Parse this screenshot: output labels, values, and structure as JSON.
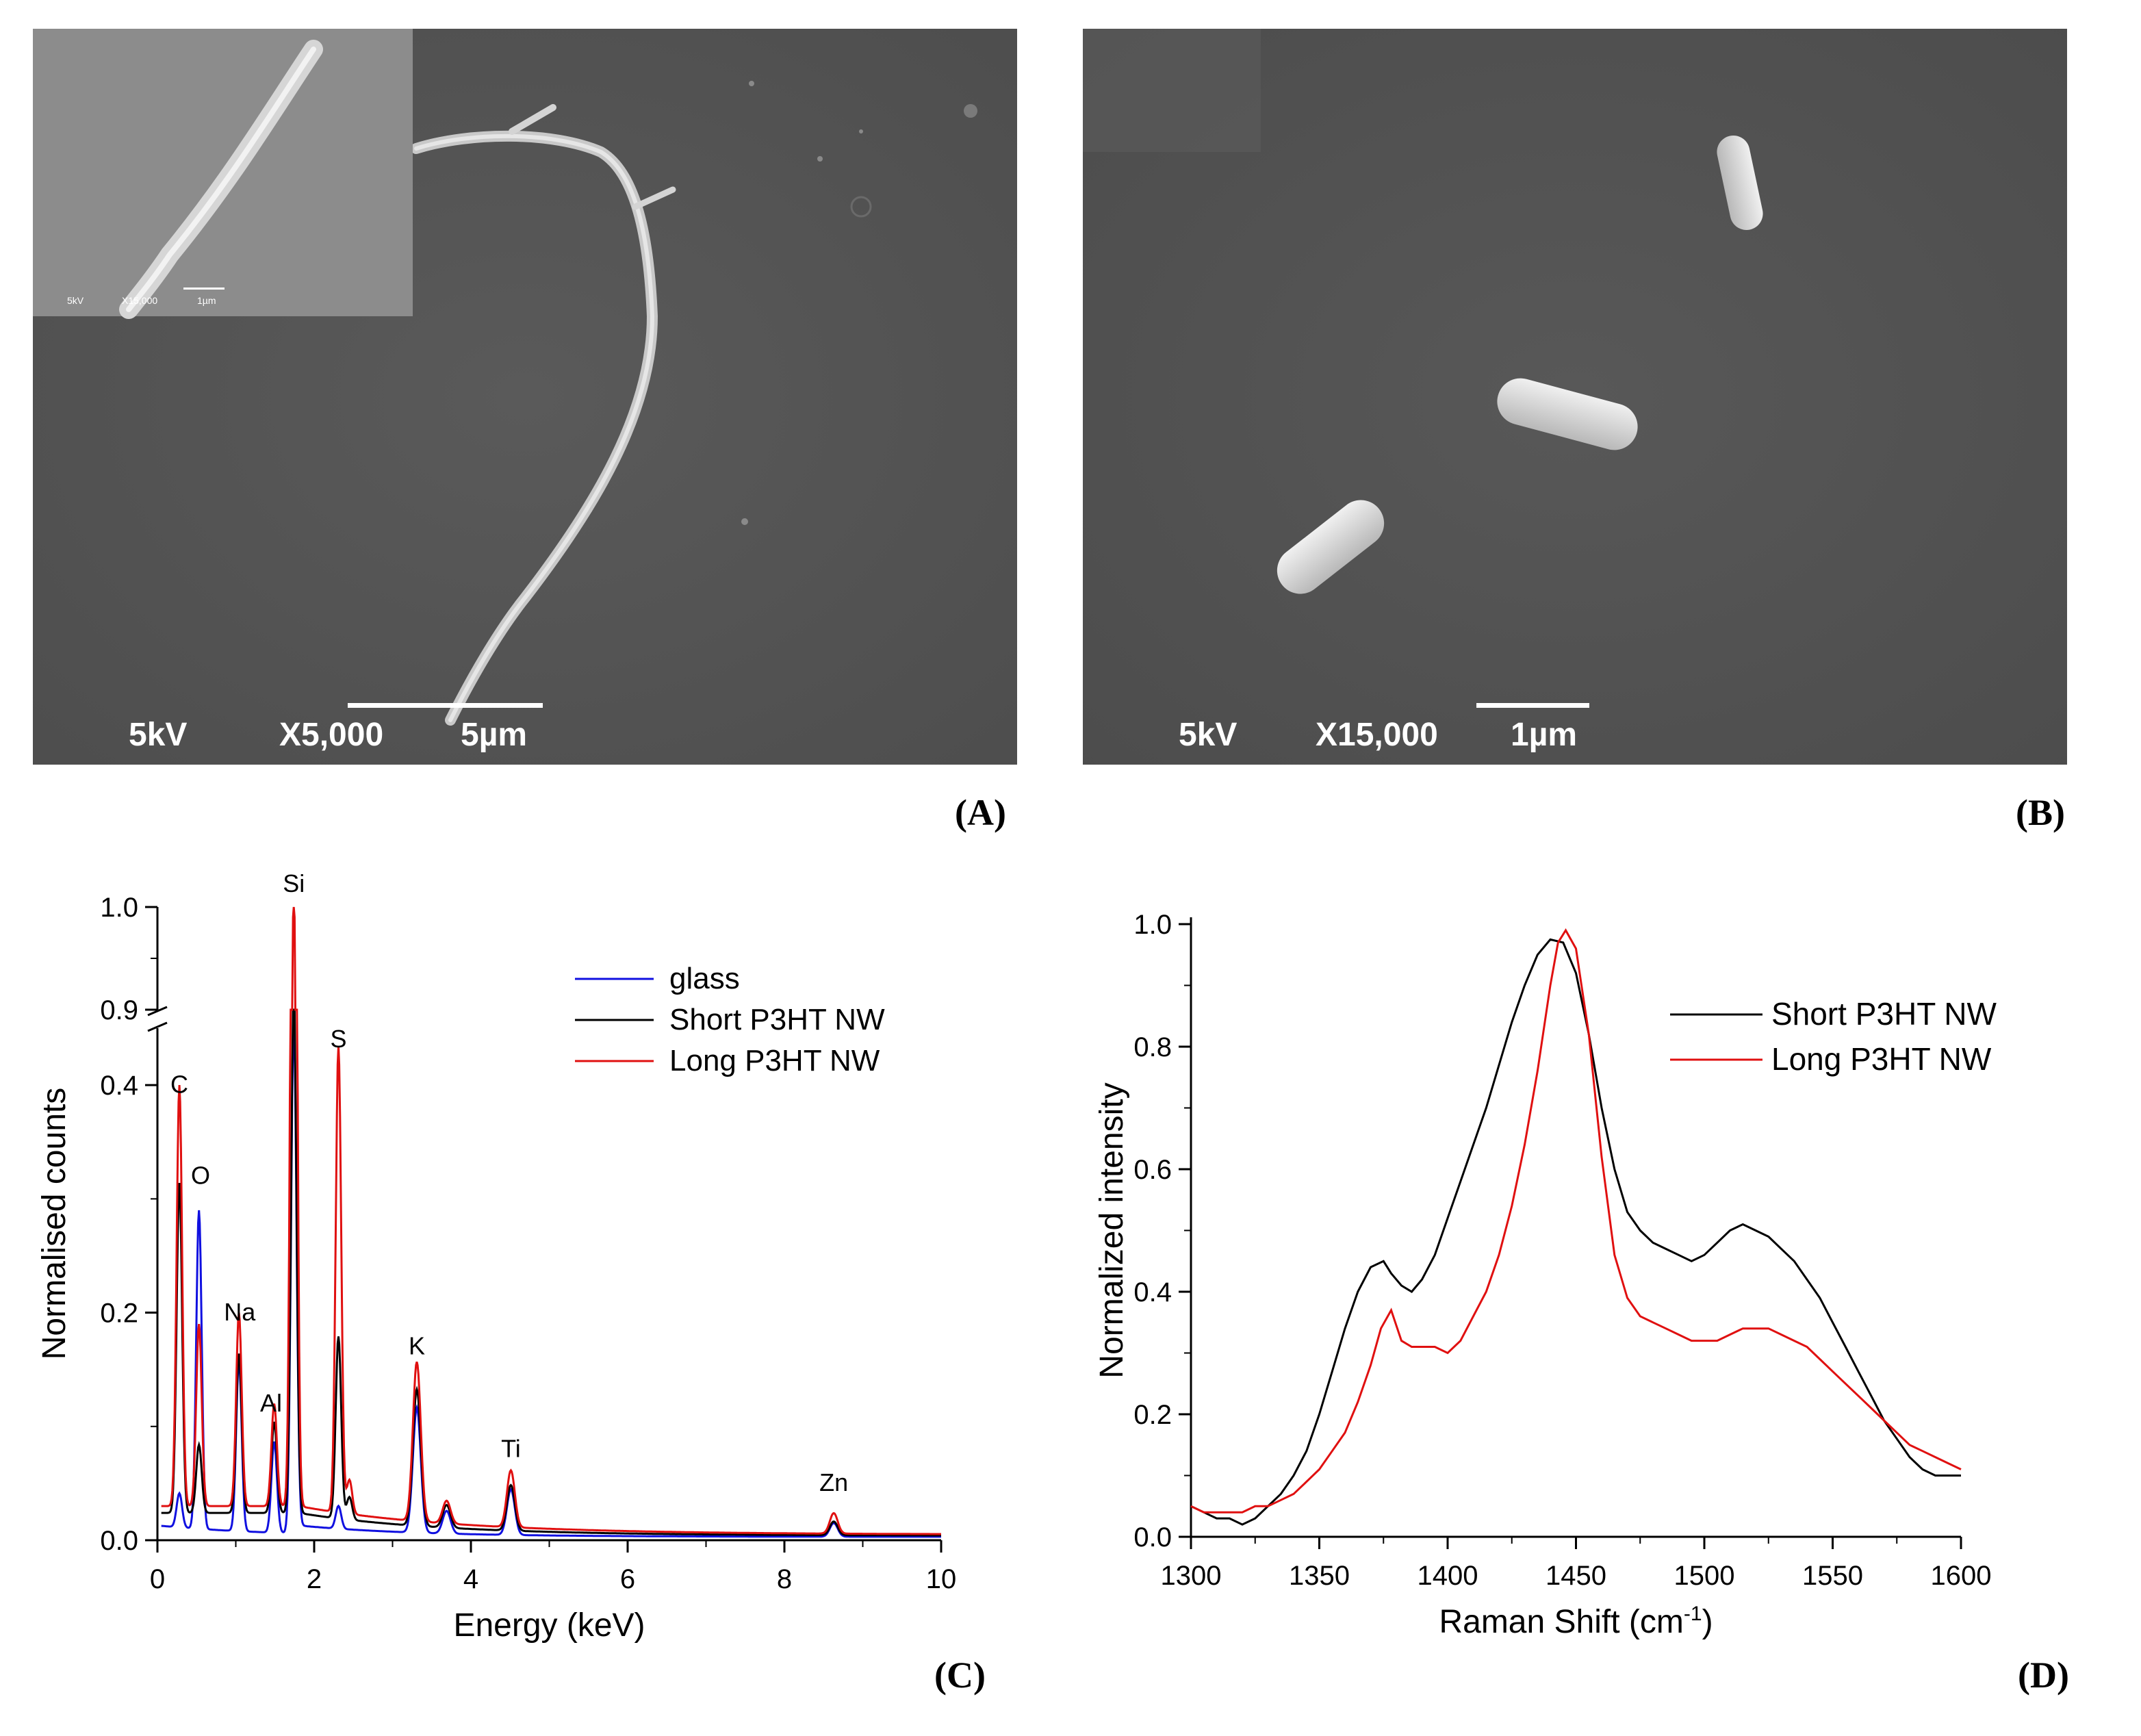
{
  "panels": {
    "A": {
      "letter": "(A)",
      "voltage": "5kV",
      "magnification": "X5,000",
      "scale": "5µm",
      "inset": {
        "voltage": "5kV",
        "magnification": "X15,000",
        "scale": "1µm"
      }
    },
    "B": {
      "letter": "(B)",
      "voltage": "5kV",
      "magnification": "X15,000",
      "scale": "1µm"
    },
    "C": {
      "letter": "(C)"
    },
    "D": {
      "letter": "(D)"
    }
  },
  "chart_data": [
    {
      "type": "line",
      "panel": "C",
      "xlabel": "Energy (keV)",
      "ylabel": "Normalised counts",
      "xlim": [
        0,
        10
      ],
      "ylim_lower": [
        0,
        0.45
      ],
      "ylim_upper": [
        0.9,
        1.0
      ],
      "axis_break": "between 0.45 and 0.9",
      "x_ticks": [
        "0",
        "2",
        "4",
        "6",
        "8",
        "10"
      ],
      "y_ticks": [
        "0.0",
        "0.2",
        "0.4",
        "0.9",
        "1.0"
      ],
      "legend_position": "top-right",
      "series": [
        {
          "name": "glass",
          "color": "#1010e0",
          "peaks": [
            [
              0.28,
              0.03
            ],
            [
              0.53,
              0.28
            ],
            [
              1.04,
              0.15
            ],
            [
              1.49,
              0.08
            ],
            [
              1.74,
              0.45
            ],
            [
              2.31,
              0.02
            ],
            [
              3.31,
              0.11
            ],
            [
              3.69,
              0.02
            ],
            [
              4.51,
              0.04
            ],
            [
              8.63,
              0.012
            ]
          ]
        },
        {
          "name": "Short P3HT NW",
          "color": "#000000",
          "peaks": [
            [
              0.28,
              0.29
            ],
            [
              0.53,
              0.06
            ],
            [
              1.04,
              0.14
            ],
            [
              1.49,
              0.08
            ],
            [
              1.74,
              0.45
            ],
            [
              2.31,
              0.16
            ],
            [
              2.45,
              0.02
            ],
            [
              3.31,
              0.12
            ],
            [
              3.69,
              0.02
            ],
            [
              4.51,
              0.04
            ],
            [
              8.63,
              0.012
            ]
          ]
        },
        {
          "name": "Long P3HT NW",
          "color": "#e01010",
          "peaks": [
            [
              0.28,
              0.37
            ],
            [
              0.53,
              0.16
            ],
            [
              1.04,
              0.17
            ],
            [
              1.49,
              0.09
            ],
            [
              1.74,
              1.0
            ],
            [
              2.31,
              0.41
            ],
            [
              2.45,
              0.03
            ],
            [
              3.31,
              0.14
            ],
            [
              3.69,
              0.02
            ],
            [
              4.51,
              0.05
            ],
            [
              8.63,
              0.018
            ]
          ]
        }
      ],
      "annotations": [
        {
          "text": "C",
          "x": 0.28,
          "y": 0.38
        },
        {
          "text": "O",
          "x": 0.55,
          "y": 0.3
        },
        {
          "text": "Na",
          "x": 1.05,
          "y": 0.18
        },
        {
          "text": "Al",
          "x": 1.45,
          "y": 0.1
        },
        {
          "text": "Si",
          "x": 1.74,
          "y": 1.0
        },
        {
          "text": "S",
          "x": 2.31,
          "y": 0.42
        },
        {
          "text": "K",
          "x": 3.31,
          "y": 0.15
        },
        {
          "text": "Ti",
          "x": 4.51,
          "y": 0.06
        },
        {
          "text": "Zn",
          "x": 8.63,
          "y": 0.03
        }
      ]
    },
    {
      "type": "line",
      "panel": "D",
      "xlabel": "Raman Shift (cm",
      "xlabel_sup": "-1",
      "xlabel_end": ")",
      "ylabel": "Normalized intensity",
      "xlim": [
        1300,
        1600
      ],
      "ylim": [
        0,
        1.0
      ],
      "x_ticks": [
        "1300",
        "1350",
        "1400",
        "1450",
        "1500",
        "1550",
        "1600"
      ],
      "y_ticks": [
        "0.0",
        "0.2",
        "0.4",
        "0.6",
        "0.8",
        "1.0"
      ],
      "legend_position": "top-right",
      "series": [
        {
          "name": "Short P3HT NW",
          "color": "#000000",
          "x": [
            1300,
            1305,
            1310,
            1315,
            1320,
            1325,
            1330,
            1335,
            1340,
            1345,
            1350,
            1355,
            1360,
            1365,
            1370,
            1375,
            1378,
            1382,
            1386,
            1390,
            1395,
            1400,
            1405,
            1410,
            1415,
            1420,
            1425,
            1430,
            1435,
            1440,
            1445,
            1450,
            1455,
            1460,
            1465,
            1470,
            1475,
            1480,
            1485,
            1490,
            1495,
            1500,
            1505,
            1510,
            1515,
            1520,
            1525,
            1530,
            1535,
            1540,
            1545,
            1550,
            1555,
            1560,
            1565,
            1570,
            1575,
            1580,
            1585,
            1590,
            1595,
            1600
          ],
          "y": [
            0.05,
            0.04,
            0.03,
            0.03,
            0.02,
            0.03,
            0.05,
            0.07,
            0.1,
            0.14,
            0.2,
            0.27,
            0.34,
            0.4,
            0.44,
            0.45,
            0.43,
            0.41,
            0.4,
            0.42,
            0.46,
            0.52,
            0.58,
            0.64,
            0.7,
            0.77,
            0.84,
            0.9,
            0.95,
            0.975,
            0.97,
            0.92,
            0.82,
            0.7,
            0.6,
            0.53,
            0.5,
            0.48,
            0.47,
            0.46,
            0.45,
            0.46,
            0.48,
            0.5,
            0.51,
            0.5,
            0.49,
            0.47,
            0.45,
            0.42,
            0.39,
            0.35,
            0.31,
            0.27,
            0.23,
            0.19,
            0.16,
            0.13,
            0.11,
            0.1,
            0.1,
            0.1
          ]
        },
        {
          "name": "Long P3HT NW",
          "color": "#e01010",
          "x": [
            1300,
            1305,
            1310,
            1315,
            1320,
            1325,
            1330,
            1335,
            1340,
            1345,
            1350,
            1355,
            1360,
            1365,
            1370,
            1374,
            1378,
            1382,
            1386,
            1390,
            1395,
            1400,
            1405,
            1410,
            1415,
            1420,
            1425,
            1430,
            1435,
            1440,
            1443,
            1446,
            1450,
            1455,
            1460,
            1465,
            1470,
            1475,
            1480,
            1485,
            1490,
            1495,
            1500,
            1505,
            1510,
            1515,
            1520,
            1525,
            1530,
            1535,
            1540,
            1545,
            1550,
            1555,
            1560,
            1565,
            1570,
            1575,
            1580,
            1585,
            1590,
            1595,
            1600
          ],
          "y": [
            0.05,
            0.04,
            0.04,
            0.04,
            0.04,
            0.05,
            0.05,
            0.06,
            0.07,
            0.09,
            0.11,
            0.14,
            0.17,
            0.22,
            0.28,
            0.34,
            0.37,
            0.32,
            0.31,
            0.31,
            0.31,
            0.3,
            0.32,
            0.36,
            0.4,
            0.46,
            0.54,
            0.64,
            0.76,
            0.9,
            0.97,
            0.99,
            0.96,
            0.82,
            0.62,
            0.46,
            0.39,
            0.36,
            0.35,
            0.34,
            0.33,
            0.32,
            0.32,
            0.32,
            0.33,
            0.34,
            0.34,
            0.34,
            0.33,
            0.32,
            0.31,
            0.29,
            0.27,
            0.25,
            0.23,
            0.21,
            0.19,
            0.17,
            0.15,
            0.14,
            0.13,
            0.12,
            0.11
          ]
        }
      ]
    }
  ]
}
